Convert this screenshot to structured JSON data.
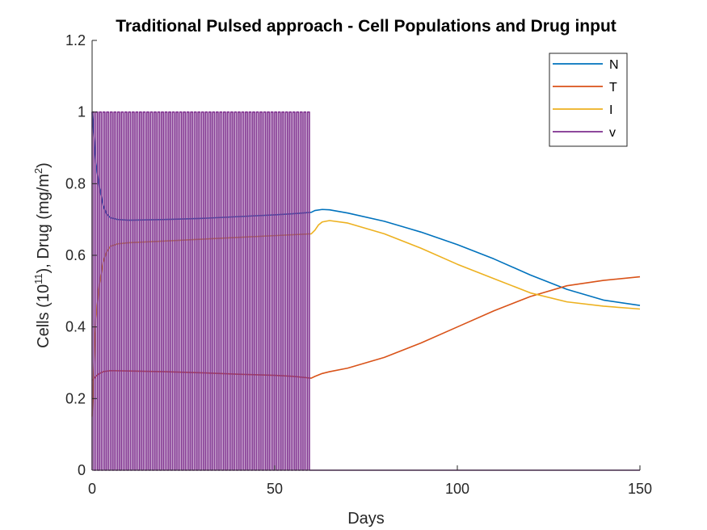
{
  "chart_data": {
    "type": "line",
    "title": "Traditional Pulsed approach - Cell Populations and Drug input",
    "xlabel": "Days",
    "ylabel_parts": [
      "Cells (10",
      "11",
      "), Drug (mg/m",
      "2",
      ")"
    ],
    "xlim": [
      0,
      150
    ],
    "ylim": [
      0,
      1.2
    ],
    "xticks": [
      0,
      50,
      100,
      150
    ],
    "yticks": [
      0,
      0.2,
      0.4,
      0.6,
      0.8,
      1,
      1.2
    ],
    "xtick_labels": [
      "0",
      "50",
      "100",
      "150"
    ],
    "ytick_labels": [
      "0",
      "0.2",
      "0.4",
      "0.6",
      "0.8",
      "1",
      "1.2"
    ],
    "grid": false,
    "legend_position": "top-right",
    "series": [
      {
        "name": "N",
        "color": "#0072BD",
        "points": [
          [
            0,
            1.0
          ],
          [
            1,
            0.86
          ],
          [
            2,
            0.79
          ],
          [
            3,
            0.74
          ],
          [
            4,
            0.715
          ],
          [
            5,
            0.705
          ],
          [
            7,
            0.7
          ],
          [
            10,
            0.698
          ],
          [
            20,
            0.7
          ],
          [
            30,
            0.703
          ],
          [
            40,
            0.708
          ],
          [
            50,
            0.713
          ],
          [
            55,
            0.716
          ],
          [
            60,
            0.72
          ],
          [
            61,
            0.725
          ],
          [
            63,
            0.728
          ],
          [
            65,
            0.727
          ],
          [
            70,
            0.718
          ],
          [
            80,
            0.695
          ],
          [
            90,
            0.665
          ],
          [
            100,
            0.63
          ],
          [
            110,
            0.59
          ],
          [
            120,
            0.545
          ],
          [
            130,
            0.505
          ],
          [
            140,
            0.475
          ],
          [
            150,
            0.46
          ]
        ]
      },
      {
        "name": "T",
        "color": "#D95319",
        "points": [
          [
            0,
            0.25
          ],
          [
            1,
            0.262
          ],
          [
            2,
            0.27
          ],
          [
            3,
            0.275
          ],
          [
            5,
            0.278
          ],
          [
            10,
            0.277
          ],
          [
            20,
            0.275
          ],
          [
            30,
            0.272
          ],
          [
            40,
            0.268
          ],
          [
            50,
            0.265
          ],
          [
            55,
            0.262
          ],
          [
            60,
            0.257
          ],
          [
            61,
            0.262
          ],
          [
            63,
            0.27
          ],
          [
            65,
            0.275
          ],
          [
            70,
            0.285
          ],
          [
            80,
            0.315
          ],
          [
            90,
            0.355
          ],
          [
            100,
            0.4
          ],
          [
            110,
            0.445
          ],
          [
            120,
            0.485
          ],
          [
            130,
            0.515
          ],
          [
            140,
            0.53
          ],
          [
            150,
            0.54
          ]
        ]
      },
      {
        "name": "I",
        "color": "#EDB120",
        "points": [
          [
            0,
            0.15
          ],
          [
            0.5,
            0.3
          ],
          [
            1,
            0.42
          ],
          [
            2,
            0.52
          ],
          [
            3,
            0.58
          ],
          [
            4,
            0.61
          ],
          [
            5,
            0.625
          ],
          [
            7,
            0.632
          ],
          [
            10,
            0.635
          ],
          [
            20,
            0.64
          ],
          [
            30,
            0.645
          ],
          [
            40,
            0.65
          ],
          [
            50,
            0.655
          ],
          [
            60,
            0.66
          ],
          [
            61,
            0.67
          ],
          [
            62,
            0.685
          ],
          [
            63,
            0.693
          ],
          [
            65,
            0.697
          ],
          [
            70,
            0.69
          ],
          [
            80,
            0.66
          ],
          [
            90,
            0.62
          ],
          [
            100,
            0.575
          ],
          [
            110,
            0.535
          ],
          [
            120,
            0.495
          ],
          [
            130,
            0.47
          ],
          [
            140,
            0.458
          ],
          [
            150,
            0.45
          ]
        ]
      },
      {
        "name": "v",
        "color": "#7E2F8E",
        "pulse": {
          "start": 0,
          "end": 60,
          "period": 1,
          "on": 0.5,
          "high": 1,
          "low": 0
        },
        "after": [
          [
            60,
            0
          ],
          [
            150,
            0
          ]
        ]
      }
    ]
  }
}
